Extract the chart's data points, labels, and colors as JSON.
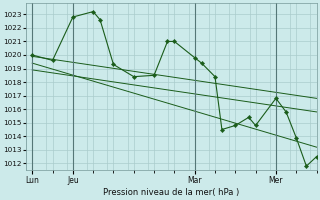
{
  "xlabel": "Pression niveau de la mer( hPa )",
  "background_color": "#cceaea",
  "grid_color": "#aacccc",
  "line_color": "#1a5c1a",
  "marker_color": "#1a5c1a",
  "ylim": [
    1011.5,
    1023.8
  ],
  "yticks": [
    1012,
    1013,
    1014,
    1015,
    1016,
    1017,
    1018,
    1019,
    1020,
    1021,
    1022,
    1023
  ],
  "day_labels": [
    "Lun",
    "Jeu",
    "Mar",
    "Mer"
  ],
  "day_positions": [
    0,
    1,
    4,
    6
  ],
  "vline_positions": [
    0,
    1,
    4,
    6
  ],
  "xmin": -0.15,
  "xmax": 7.0,
  "series1": {
    "x": [
      0.0,
      0.5,
      1.0,
      1.5,
      1.67,
      2.0,
      2.5,
      3.0,
      3.33,
      3.5,
      4.0,
      4.17,
      4.5,
      4.67,
      5.0,
      5.33,
      5.5,
      6.0,
      6.25,
      6.5,
      6.75,
      7.0
    ],
    "y": [
      1020.0,
      1019.6,
      1022.8,
      1023.2,
      1022.6,
      1019.3,
      1018.4,
      1018.5,
      1021.0,
      1021.0,
      1019.8,
      1019.4,
      1018.4,
      1014.5,
      1014.8,
      1015.4,
      1014.8,
      1016.8,
      1015.8,
      1013.9,
      1011.8,
      1012.5
    ]
  },
  "series2": {
    "x": [
      0.0,
      7.0
    ],
    "y": [
      1019.9,
      1016.8
    ]
  },
  "series3": {
    "x": [
      0.0,
      7.0
    ],
    "y": [
      1018.9,
      1015.8
    ]
  },
  "series4": {
    "x": [
      0.0,
      7.0
    ],
    "y": [
      1019.4,
      1013.2
    ]
  }
}
